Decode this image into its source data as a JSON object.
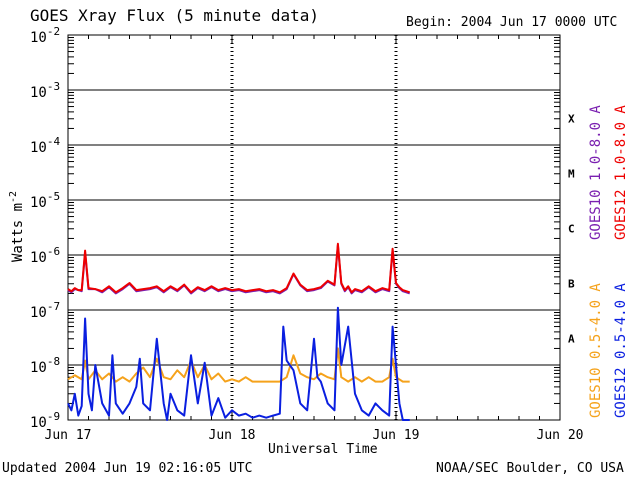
{
  "header": {
    "title": "GOES Xray Flux (5 minute data)",
    "begin": "Begin:  2004 Jun 17 0000 UTC"
  },
  "footer": {
    "updated": "Updated 2004 Jun 19 02:16:05 UTC",
    "credit": "NOAA/SEC Boulder, CO USA"
  },
  "chart_data": {
    "type": "line",
    "title": "GOES Xray Flux (5 minute data)",
    "xlabel": "Universal Time",
    "ylabel": "Watts m-2",
    "yscale": "log",
    "ylim": [
      1e-09,
      0.01
    ],
    "xlim": [
      0,
      72
    ],
    "x_units": "hours since 2004 Jun 17 0000 UTC",
    "x_ticks": [
      {
        "x": 0,
        "label": "Jun 17"
      },
      {
        "x": 24,
        "label": "Jun 18"
      },
      {
        "x": 48,
        "label": "Jun 19"
      },
      {
        "x": 72,
        "label": "Jun 20"
      }
    ],
    "y_ticks": [
      {
        "exp": -9,
        "label": "10",
        "sup": "-9"
      },
      {
        "exp": -8,
        "label": "10",
        "sup": "-8"
      },
      {
        "exp": -7,
        "label": "10",
        "sup": "-7"
      },
      {
        "exp": -6,
        "label": "10",
        "sup": "-6"
      },
      {
        "exp": -5,
        "label": "10",
        "sup": "-5"
      },
      {
        "exp": -4,
        "label": "10",
        "sup": "-4"
      },
      {
        "exp": -3,
        "label": "10",
        "sup": "-3"
      },
      {
        "exp": -2,
        "label": "10",
        "sup": "-2"
      }
    ],
    "flare_classes": [
      {
        "label": "A",
        "exp": -8
      },
      {
        "label": "B",
        "exp": -7
      },
      {
        "label": "C",
        "exp": -6
      },
      {
        "label": "M",
        "exp": -5
      },
      {
        "label": "X",
        "exp": -4
      }
    ],
    "legend_placement": "right",
    "series": [
      {
        "name": "GOES10 1.0-8.0 A",
        "color": "#7a1fb0",
        "x": [
          0,
          0.5,
          1,
          1.5,
          2,
          2.5,
          3,
          4,
          5,
          6,
          7,
          8,
          9,
          10,
          11,
          12,
          13,
          14,
          15,
          16,
          17,
          18,
          19,
          20,
          21,
          22,
          23,
          24,
          25,
          26,
          27,
          28,
          29,
          30,
          31,
          32,
          33,
          34,
          35,
          36,
          37,
          38,
          39,
          39.5,
          40,
          40.5,
          41,
          41.5,
          42,
          43,
          44,
          45,
          46,
          47,
          47.5,
          48,
          48.5,
          49,
          50
        ],
        "values": [
          2.3e-07,
          2.1e-07,
          2.4e-07,
          2.3e-07,
          2.2e-07,
          1.1e-06,
          2.4e-07,
          2.4e-07,
          2.1e-07,
          2.6e-07,
          2e-07,
          2.4e-07,
          3e-07,
          2.2e-07,
          2.3e-07,
          2.4e-07,
          2.6e-07,
          2.1e-07,
          2.6e-07,
          2.2e-07,
          2.8e-07,
          2e-07,
          2.5e-07,
          2.2e-07,
          2.6e-07,
          2.2e-07,
          2.4e-07,
          2.2e-07,
          2.3e-07,
          2.1e-07,
          2.2e-07,
          2.3e-07,
          2.1e-07,
          2.2e-07,
          2e-07,
          2.4e-07,
          4.5e-07,
          2.8e-07,
          2.2e-07,
          2.3e-07,
          2.5e-07,
          3.3e-07,
          2.8e-07,
          1.5e-06,
          3e-07,
          2.2e-07,
          2.6e-07,
          2e-07,
          2.3e-07,
          2.1e-07,
          2.6e-07,
          2.1e-07,
          2.4e-07,
          2.2e-07,
          1.2e-06,
          3e-07,
          2.5e-07,
          2.2e-07,
          2e-07
        ]
      },
      {
        "name": "GOES12 1.0-8.0 A",
        "color": "#ee0000",
        "x": [
          0,
          0.5,
          1,
          1.5,
          2,
          2.5,
          3,
          4,
          5,
          6,
          7,
          8,
          9,
          10,
          11,
          12,
          13,
          14,
          15,
          16,
          17,
          18,
          19,
          20,
          21,
          22,
          23,
          24,
          25,
          26,
          27,
          28,
          29,
          30,
          31,
          32,
          33,
          34,
          35,
          36,
          37,
          38,
          39,
          39.5,
          40,
          40.5,
          41,
          41.5,
          42,
          43,
          44,
          45,
          46,
          47,
          47.5,
          48,
          48.5,
          49,
          50
        ],
        "values": [
          2.4e-07,
          2.2e-07,
          2.5e-07,
          2.3e-07,
          2.3e-07,
          1.2e-06,
          2.5e-07,
          2.4e-07,
          2.2e-07,
          2.7e-07,
          2.1e-07,
          2.5e-07,
          3.1e-07,
          2.3e-07,
          2.4e-07,
          2.5e-07,
          2.7e-07,
          2.2e-07,
          2.7e-07,
          2.3e-07,
          2.9e-07,
          2.1e-07,
          2.6e-07,
          2.3e-07,
          2.7e-07,
          2.3e-07,
          2.5e-07,
          2.3e-07,
          2.4e-07,
          2.2e-07,
          2.3e-07,
          2.4e-07,
          2.2e-07,
          2.3e-07,
          2.1e-07,
          2.5e-07,
          4.6e-07,
          2.9e-07,
          2.3e-07,
          2.4e-07,
          2.6e-07,
          3.4e-07,
          2.9e-07,
          1.6e-06,
          3.1e-07,
          2.3e-07,
          2.7e-07,
          2.1e-07,
          2.4e-07,
          2.2e-07,
          2.7e-07,
          2.2e-07,
          2.5e-07,
          2.3e-07,
          1.3e-06,
          3.1e-07,
          2.6e-07,
          2.3e-07,
          2.1e-07
        ]
      },
      {
        "name": "GOES10 0.5-4.0 A",
        "color": "#f5a21b",
        "x": [
          0,
          1,
          2,
          2.5,
          3,
          4,
          5,
          6,
          7,
          8,
          9,
          10,
          11,
          12,
          13,
          14,
          15,
          16,
          17,
          18,
          19,
          20,
          21,
          22,
          23,
          24,
          25,
          26,
          27,
          28,
          29,
          30,
          31,
          32,
          33,
          34,
          35,
          36,
          37,
          38,
          39,
          39.5,
          40,
          41,
          42,
          43,
          44,
          45,
          46,
          47,
          47.5,
          48,
          49,
          50
        ],
        "values": [
          5.5e-09,
          6.5e-09,
          5.5e-09,
          1.2e-08,
          5.5e-09,
          8e-09,
          5.5e-09,
          7e-09,
          5e-09,
          6e-09,
          5e-09,
          7e-09,
          9e-09,
          6e-09,
          1.3e-08,
          6e-09,
          5.5e-09,
          8e-09,
          6e-09,
          1.2e-08,
          6e-09,
          1e-08,
          5.5e-09,
          7e-09,
          5e-09,
          5.5e-09,
          5e-09,
          6e-09,
          5e-09,
          5e-09,
          5e-09,
          5e-09,
          5e-09,
          6e-09,
          1.5e-08,
          7e-09,
          6e-09,
          5.5e-09,
          7e-09,
          6e-09,
          5.5e-09,
          2e-08,
          6e-09,
          5e-09,
          6e-09,
          5e-09,
          6e-09,
          5e-09,
          5e-09,
          6e-09,
          1.3e-08,
          6e-09,
          5e-09,
          5e-09
        ]
      },
      {
        "name": "GOES12 0.5-4.0 A",
        "color": "#0a1fe0",
        "x": [
          0,
          0.5,
          1,
          1.5,
          2,
          2.5,
          3,
          3.5,
          4,
          5,
          6,
          6.5,
          7,
          8,
          9,
          10,
          10.5,
          11,
          12,
          13,
          14,
          14.5,
          15,
          16,
          17,
          18,
          19,
          20,
          21,
          22,
          23,
          24,
          25,
          26,
          27,
          28,
          29,
          30,
          31,
          31.5,
          32,
          33,
          34,
          35,
          36,
          36.5,
          37,
          38,
          39,
          39.5,
          40,
          41,
          42,
          43,
          44,
          45,
          46,
          47,
          47.5,
          48,
          48.5,
          49,
          50
        ],
        "values": [
          2e-09,
          1.5e-09,
          3e-09,
          1.2e-09,
          1.8e-09,
          7e-08,
          3e-09,
          1.5e-09,
          1e-08,
          2e-09,
          1.2e-09,
          1.5e-08,
          2e-09,
          1.3e-09,
          2e-09,
          4e-09,
          1.3e-08,
          2e-09,
          1.5e-09,
          3e-08,
          2e-09,
          1e-09,
          3e-09,
          1.5e-09,
          1.2e-09,
          1.5e-08,
          2e-09,
          1.1e-08,
          1.2e-09,
          2.5e-09,
          1.1e-09,
          1.5e-09,
          1.2e-09,
          1.3e-09,
          1.1e-09,
          1.2e-09,
          1.1e-09,
          1.2e-09,
          1.3e-09,
          5e-08,
          1.2e-08,
          8e-09,
          2e-09,
          1.5e-09,
          3e-08,
          6e-09,
          5e-09,
          2e-09,
          1.5e-09,
          1.1e-07,
          1e-08,
          5e-08,
          3e-09,
          1.5e-09,
          1.2e-09,
          2e-09,
          1.5e-09,
          1.2e-09,
          5e-08,
          1e-08,
          2e-09,
          1e-09,
          1e-09
        ]
      }
    ]
  }
}
